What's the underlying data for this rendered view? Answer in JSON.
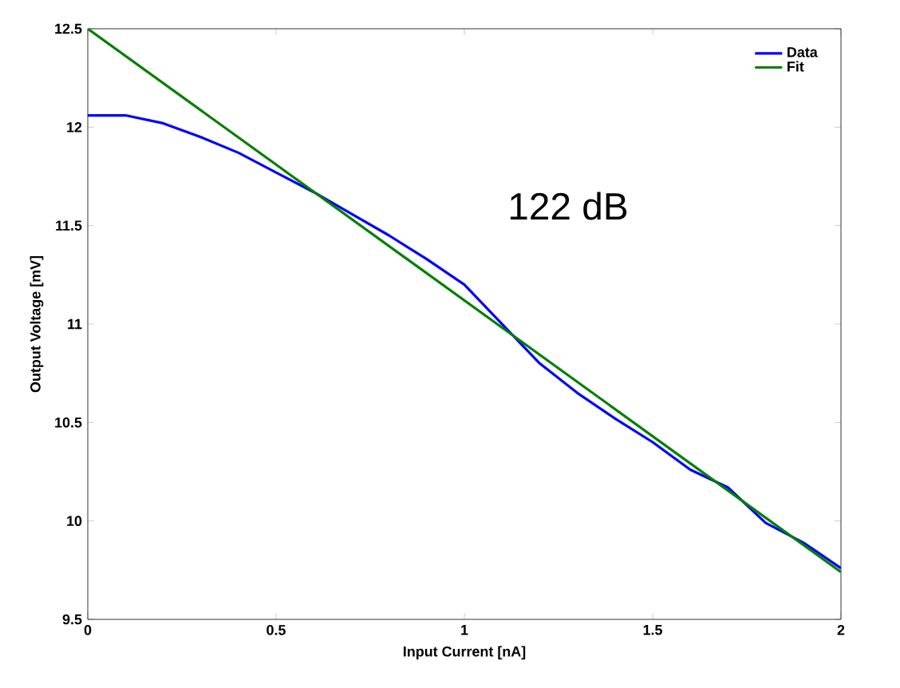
{
  "chart_data": {
    "type": "line",
    "xlabel": "Input Current [nA]",
    "ylabel": "Output Voltage [mV]",
    "annotations": [
      "122 dB"
    ],
    "series": [
      {
        "name": "Data",
        "color": "#0000ff",
        "x": [
          0,
          0.1,
          0.2,
          0.3,
          0.4,
          0.5,
          0.6,
          0.7,
          0.8,
          0.9,
          1.0,
          1.1,
          1.2,
          1.3,
          1.4,
          1.5,
          1.6,
          1.7,
          1.8,
          1.9,
          2.0
        ],
        "values": [
          12.06,
          12.06,
          12.02,
          11.95,
          11.87,
          11.77,
          11.67,
          11.56,
          11.45,
          11.33,
          11.2,
          11.0,
          10.8,
          10.65,
          10.52,
          10.4,
          10.26,
          10.17,
          9.99,
          9.89,
          9.76
        ]
      },
      {
        "name": "Fit",
        "color": "#007f00",
        "x": [
          0,
          2
        ],
        "values": [
          12.5,
          9.74
        ]
      }
    ],
    "xlim": [
      0,
      2
    ],
    "ylim": [
      9.5,
      12.5
    ],
    "xticks": [
      0,
      0.5,
      1,
      1.5,
      2
    ],
    "yticks": [
      9.5,
      10,
      10.5,
      11,
      11.5,
      12,
      12.5
    ],
    "grid": false,
    "legend": "top right",
    "marker": "none",
    "line_style": "solid"
  }
}
